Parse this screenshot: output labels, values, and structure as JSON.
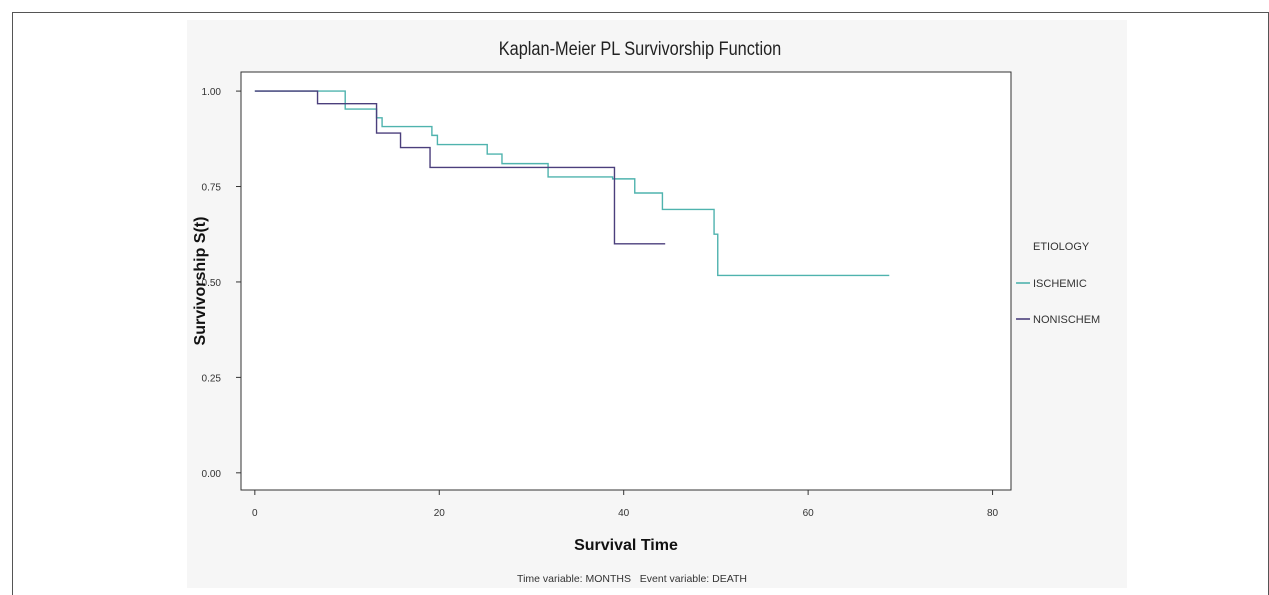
{
  "chart_data": {
    "type": "line",
    "title": "Kaplan-Meier PL Survivorship Function",
    "xlabel": "Survival Time",
    "ylabel": "Survivorship S(t)",
    "footnote": "Time variable: MONTHS   Event variable: DEATH",
    "xlim": [
      -1.5,
      82
    ],
    "ylim": [
      -0.045,
      1.05
    ],
    "xticks": [
      0,
      20,
      40,
      60,
      80
    ],
    "xtick_labels": [
      "0",
      "20",
      "40",
      "60",
      "80"
    ],
    "yticks": [
      0,
      0.25,
      0.5,
      0.75,
      1.0
    ],
    "ytick_labels": [
      "0.00",
      "0.25",
      "0.50",
      "0.75",
      "1.00"
    ],
    "grid": false,
    "legend": {
      "title": "ETIOLOGY",
      "position": "right"
    },
    "series": [
      {
        "name": "ISCHEMIC",
        "color": "#4fb3ae",
        "step": true,
        "x": [
          0,
          9.8,
          13.2,
          13.8,
          19.2,
          19.8,
          25.2,
          26.8,
          31.8,
          38.8,
          41.2,
          44.2,
          49.8,
          50.2,
          68.8
        ],
        "y": [
          1.0,
          0.953,
          0.93,
          0.907,
          0.884,
          0.86,
          0.835,
          0.81,
          0.775,
          0.77,
          0.733,
          0.69,
          0.625,
          0.517,
          0.517
        ]
      },
      {
        "name": "NONISCHEM",
        "color": "#4b3f7c",
        "step": true,
        "x": [
          0,
          6.8,
          13.2,
          15.8,
          19.0,
          39.0,
          44.5
        ],
        "y": [
          1.0,
          0.967,
          0.89,
          0.852,
          0.8,
          0.6,
          0.6
        ]
      }
    ]
  }
}
